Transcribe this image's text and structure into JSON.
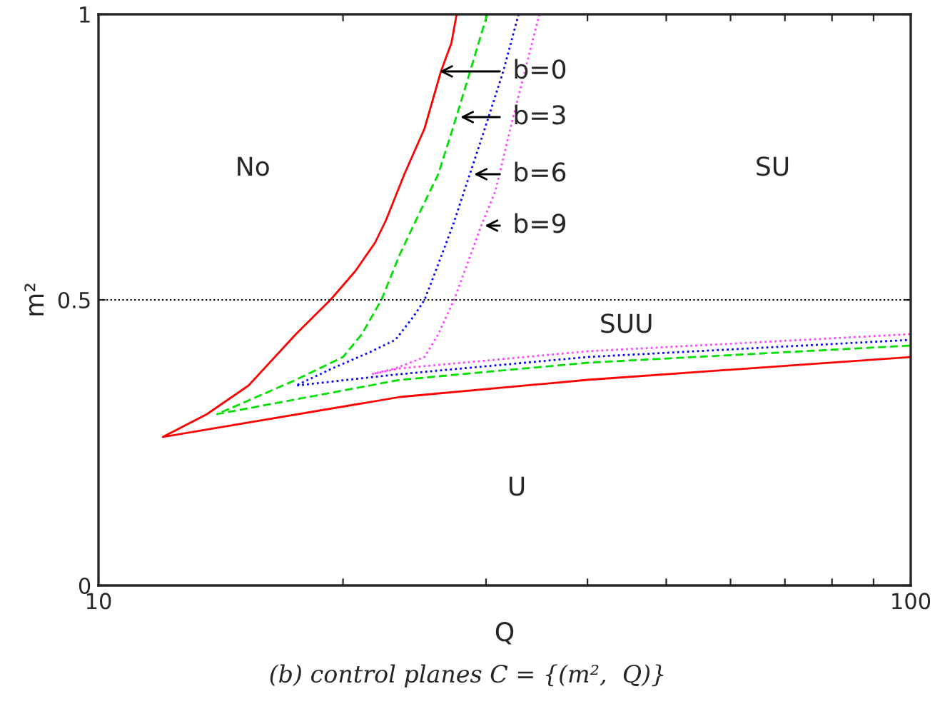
{
  "chart_data": {
    "type": "line",
    "xlabel": "Q",
    "ylabel": "m²",
    "log": "x",
    "grid": false,
    "legend": false,
    "xlim": [
      10,
      100
    ],
    "xticks": [
      10,
      {
        "value": 20,
        "label": null
      },
      {
        "value": 30,
        "label": null
      },
      {
        "value": 40,
        "label": null
      },
      {
        "value": 50,
        "label": null
      },
      {
        "value": 60,
        "label": null
      },
      {
        "value": 70,
        "label": null
      },
      {
        "value": 80,
        "label": null
      },
      {
        "value": 90,
        "label": null
      },
      100
    ],
    "ylim": [
      0,
      1
    ],
    "yticks": [
      0,
      0.5,
      1
    ],
    "ref_lines": [
      {
        "axis": "y",
        "value": 0.5,
        "color": "#000000",
        "line_style": "dotted"
      }
    ],
    "series": [
      {
        "color": "#ff0000",
        "line_style": "solid",
        "x": [
          27.6,
          27.2,
          26.4,
          25.2,
          23.8,
          22.6,
          21.9,
          20.7,
          19.3,
          17.5,
          15.3,
          13.6,
          12.0,
          23.5,
          40,
          100
        ],
        "values": [
          1.0,
          0.95,
          0.9,
          0.8,
          0.72,
          0.64,
          0.6,
          0.55,
          0.5,
          0.44,
          0.35,
          0.3,
          0.26,
          0.33,
          0.36,
          0.4
        ]
      },
      {
        "color": "#00e000",
        "line_style": "dashed",
        "x": [
          30.1,
          28.4,
          27.3,
          26.2,
          24.8,
          23.5,
          22.3,
          21.1,
          20.0,
          17.5,
          14.0,
          23.5,
          40,
          100
        ],
        "values": [
          1.0,
          0.88,
          0.8,
          0.72,
          0.65,
          0.58,
          0.5,
          0.44,
          0.4,
          0.36,
          0.3,
          0.36,
          0.39,
          0.42
        ]
      },
      {
        "color": "#0000ff",
        "line_style": "dotted",
        "x": [
          32.9,
          31.5,
          29.9,
          28.5,
          27.3,
          26.0,
          25.2,
          24.4,
          23.2,
          21.7,
          19.4,
          17.5,
          23.5,
          40,
          100
        ],
        "values": [
          1.0,
          0.9,
          0.8,
          0.71,
          0.63,
          0.55,
          0.5,
          0.47,
          0.43,
          0.41,
          0.38,
          0.35,
          0.37,
          0.4,
          0.43
        ]
      },
      {
        "color": "#ff44ff",
        "line_style": "dotted",
        "x": [
          34.9,
          32.4,
          30.8,
          29.6,
          28.4,
          27.4,
          26.2,
          25.2,
          23.2,
          21.7,
          23.5,
          40,
          100
        ],
        "values": [
          1.0,
          0.82,
          0.69,
          0.63,
          0.56,
          0.5,
          0.44,
          0.4,
          0.38,
          0.37,
          0.38,
          0.41,
          0.44
        ]
      }
    ],
    "annotations": [
      {
        "text": "b=0",
        "x": 26.3,
        "y": 0.9
      },
      {
        "text": "b=3",
        "x": 27.9,
        "y": 0.82
      },
      {
        "text": "b=6",
        "x": 29.0,
        "y": 0.72
      },
      {
        "text": "b=9",
        "x": 29.9,
        "y": 0.63
      },
      "No",
      "SU",
      "SUU",
      "U",
      "(b) control planes C = {(m²,  Q)}"
    ]
  }
}
